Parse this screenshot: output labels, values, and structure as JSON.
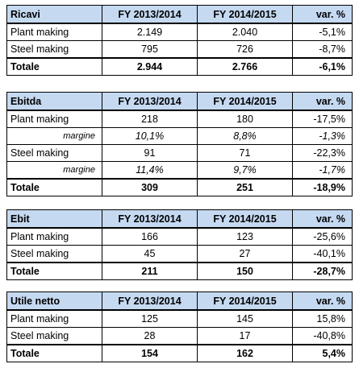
{
  "tables": [
    {
      "header": [
        "Ricavi",
        "FY 2013/2014",
        "FY 2014/2015",
        "var. %"
      ],
      "rows": [
        [
          "Plant making",
          "2.149",
          "2.040",
          "-5,1%"
        ],
        [
          "Steel making",
          "795",
          "726",
          "-8,7%"
        ],
        [
          "Totale",
          "2.944",
          "2.766",
          "-6,1%"
        ]
      ]
    },
    {
      "header": [
        "Ebitda",
        "FY 2013/2014",
        "FY 2014/2015",
        "var. %"
      ],
      "rows": [
        [
          "Plant making",
          "218",
          "180",
          "-17,5%"
        ],
        [
          "margine",
          "10,1%",
          "8,8%",
          "-1,3%"
        ],
        [
          "Steel making",
          "91",
          "71",
          "-22,3%"
        ],
        [
          "margine",
          "11,4%",
          "9,7%",
          "-1,7%"
        ],
        [
          "Totale",
          "309",
          "251",
          "-18,9%"
        ]
      ]
    },
    {
      "header": [
        "Ebit",
        "FY 2013/2014",
        "FY 2014/2015",
        "var. %"
      ],
      "rows": [
        [
          "Plant making",
          "166",
          "123",
          "-25,6%"
        ],
        [
          "Steel making",
          "45",
          "27",
          "-40,1%"
        ],
        [
          "Totale",
          "211",
          "150",
          "-28,7%"
        ]
      ]
    },
    {
      "header": [
        "Utile netto",
        "FY 2013/2014",
        "FY 2014/2015",
        "var. %"
      ],
      "rows": [
        [
          "Plant making",
          "125",
          "145",
          "15,8%"
        ],
        [
          "Steel making",
          "28",
          "17",
          "-40,8%"
        ],
        [
          "Totale",
          "154",
          "162",
          "5,4%"
        ]
      ]
    }
  ]
}
